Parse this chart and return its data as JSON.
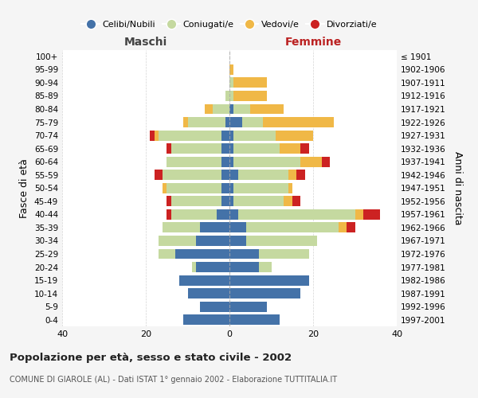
{
  "age_groups": [
    "0-4",
    "5-9",
    "10-14",
    "15-19",
    "20-24",
    "25-29",
    "30-34",
    "35-39",
    "40-44",
    "45-49",
    "50-54",
    "55-59",
    "60-64",
    "65-69",
    "70-74",
    "75-79",
    "80-84",
    "85-89",
    "90-94",
    "95-99",
    "100+"
  ],
  "birth_years": [
    "1997-2001",
    "1992-1996",
    "1987-1991",
    "1982-1986",
    "1977-1981",
    "1972-1976",
    "1967-1971",
    "1962-1966",
    "1957-1961",
    "1952-1956",
    "1947-1951",
    "1942-1946",
    "1937-1941",
    "1932-1936",
    "1927-1931",
    "1922-1926",
    "1917-1921",
    "1912-1916",
    "1907-1911",
    "1902-1906",
    "≤ 1901"
  ],
  "male": {
    "celibi": [
      11,
      7,
      10,
      12,
      8,
      13,
      8,
      7,
      3,
      2,
      2,
      2,
      2,
      2,
      2,
      1,
      0,
      0,
      0,
      0,
      0
    ],
    "coniugati": [
      0,
      0,
      0,
      0,
      1,
      4,
      9,
      9,
      11,
      12,
      13,
      14,
      13,
      12,
      15,
      9,
      4,
      1,
      0,
      0,
      0
    ],
    "vedovi": [
      0,
      0,
      0,
      0,
      0,
      0,
      0,
      0,
      0,
      0,
      1,
      0,
      0,
      0,
      1,
      1,
      2,
      0,
      0,
      0,
      0
    ],
    "divorziati": [
      0,
      0,
      0,
      0,
      0,
      0,
      0,
      0,
      1,
      1,
      0,
      2,
      0,
      1,
      1,
      0,
      0,
      0,
      0,
      0,
      0
    ]
  },
  "female": {
    "nubili": [
      12,
      9,
      17,
      19,
      7,
      7,
      4,
      4,
      2,
      1,
      1,
      2,
      1,
      1,
      1,
      3,
      1,
      0,
      0,
      0,
      0
    ],
    "coniugate": [
      0,
      0,
      0,
      0,
      3,
      12,
      17,
      22,
      28,
      12,
      13,
      12,
      16,
      11,
      10,
      5,
      4,
      1,
      1,
      0,
      0
    ],
    "vedove": [
      0,
      0,
      0,
      0,
      0,
      0,
      0,
      2,
      2,
      2,
      1,
      2,
      5,
      5,
      9,
      17,
      8,
      8,
      8,
      1,
      0
    ],
    "divorziate": [
      0,
      0,
      0,
      0,
      0,
      0,
      0,
      2,
      4,
      2,
      0,
      2,
      2,
      2,
      0,
      0,
      0,
      0,
      0,
      0,
      0
    ]
  },
  "colors": {
    "celibi": "#4472a8",
    "coniugati": "#c5d9a0",
    "vedovi": "#f0b847",
    "divorziati": "#cc2222"
  },
  "xlim": [
    -40,
    40
  ],
  "title": "Popolazione per età, sesso e stato civile - 2002",
  "subtitle": "COMUNE DI GIAROLE (AL) - Dati ISTAT 1° gennaio 2002 - Elaborazione TUTTITALIA.IT",
  "ylabel_left": "Fasce di età",
  "ylabel_right": "Anni di nascita",
  "xlabel_maschi": "Maschi",
  "xlabel_femmine": "Femmine",
  "bg_color": "#f5f5f5",
  "plot_bg": "#ffffff",
  "legend_labels": [
    "Celibi/Nubili",
    "Coniugati/e",
    "Vedovi/e",
    "Divorziati/e"
  ]
}
